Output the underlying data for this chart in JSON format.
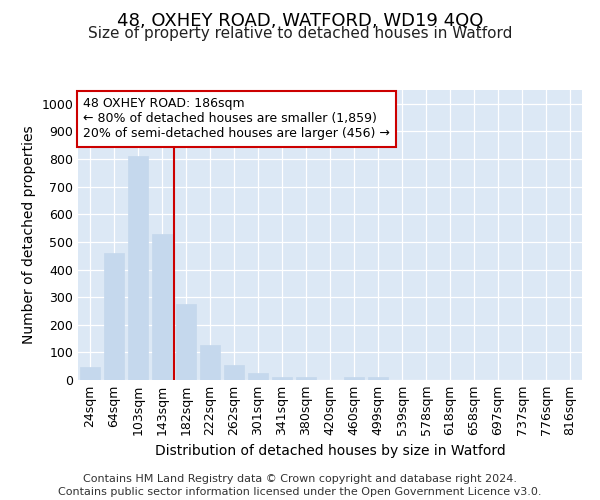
{
  "title": "48, OXHEY ROAD, WATFORD, WD19 4QQ",
  "subtitle": "Size of property relative to detached houses in Watford",
  "xlabel": "Distribution of detached houses by size in Watford",
  "ylabel": "Number of detached properties",
  "categories": [
    "24sqm",
    "64sqm",
    "103sqm",
    "143sqm",
    "182sqm",
    "222sqm",
    "262sqm",
    "301sqm",
    "341sqm",
    "380sqm",
    "420sqm",
    "460sqm",
    "499sqm",
    "539sqm",
    "578sqm",
    "618sqm",
    "658sqm",
    "697sqm",
    "737sqm",
    "776sqm",
    "816sqm"
  ],
  "values": [
    48,
    460,
    810,
    530,
    275,
    125,
    55,
    25,
    12,
    10,
    0,
    10,
    10,
    0,
    0,
    0,
    0,
    0,
    0,
    0,
    0
  ],
  "bar_color": "#c5d8ed",
  "bar_edge_color": "#c5d8ed",
  "vline_color": "#cc0000",
  "annotation_line1": "48 OXHEY ROAD: 186sqm",
  "annotation_line2": "← 80% of detached houses are smaller (1,859)",
  "annotation_line3": "20% of semi-detached houses are larger (456) →",
  "annotation_box_facecolor": "#ffffff",
  "annotation_box_edgecolor": "#cc0000",
  "ylim": [
    0,
    1050
  ],
  "yticks": [
    0,
    100,
    200,
    300,
    400,
    500,
    600,
    700,
    800,
    900,
    1000
  ],
  "bg_color": "#dce8f5",
  "grid_color": "#ffffff",
  "title_fontsize": 13,
  "subtitle_fontsize": 11,
  "axis_label_fontsize": 10,
  "tick_fontsize": 9,
  "annotation_fontsize": 9,
  "footer_fontsize": 8,
  "footer1": "Contains HM Land Registry data © Crown copyright and database right 2024.",
  "footer2": "Contains public sector information licensed under the Open Government Licence v3.0."
}
